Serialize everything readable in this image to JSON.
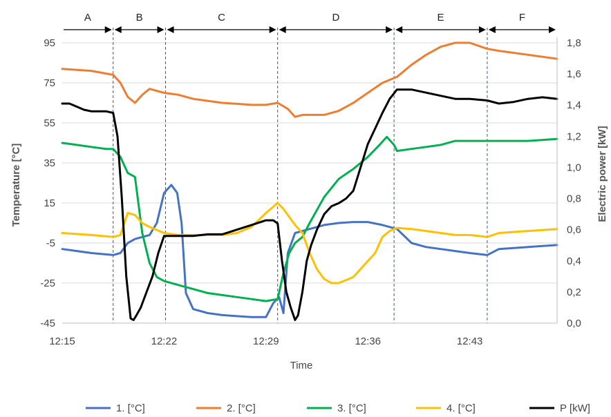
{
  "chart_data": {
    "type": "line",
    "xlabel": "Time",
    "ylabel": "Temperature [°C]",
    "y2label": "Electric power [kW]",
    "x_range_minutes": [
      0,
      34
    ],
    "ylim": [
      -45,
      95
    ],
    "y2lim": [
      0,
      1.8
    ],
    "x_ticks": [
      {
        "t": 0,
        "label": "12:15"
      },
      {
        "t": 7,
        "label": "12:22"
      },
      {
        "t": 14,
        "label": "12:29"
      },
      {
        "t": 21,
        "label": "12:36"
      },
      {
        "t": 28,
        "label": "12:43"
      }
    ],
    "y_ticks": [
      95,
      75,
      55,
      35,
      15,
      -5,
      -25,
      -45
    ],
    "y2_ticks": [
      "1,8",
      "1,6",
      "1,4",
      "1,2",
      "1,0",
      "0,8",
      "0,6",
      "0,4",
      "0,2",
      "0,0"
    ],
    "y2_tick_values": [
      1.8,
      1.6,
      1.4,
      1.2,
      1.0,
      0.8,
      0.6,
      0.4,
      0.2,
      0.0
    ],
    "grid": "horizontal",
    "legend_position": "bottom",
    "phase_boundaries": [
      3.5,
      7.1,
      14.8,
      22.8,
      29.2
    ],
    "phases": [
      {
        "label": "A",
        "start": 0,
        "end": 3.5
      },
      {
        "label": "B",
        "start": 3.5,
        "end": 7.1
      },
      {
        "label": "C",
        "start": 7.1,
        "end": 14.8
      },
      {
        "label": "D",
        "start": 14.8,
        "end": 22.8
      },
      {
        "label": "E",
        "start": 22.8,
        "end": 29.2
      },
      {
        "label": "F",
        "start": 29.2,
        "end": 34
      }
    ],
    "series": [
      {
        "name": "1. [°C]",
        "axis": "left",
        "color": "#4472C4",
        "x": [
          0,
          2,
          3.5,
          4.0,
          4.5,
          5.0,
          5.5,
          6.0,
          6.5,
          7.0,
          7.5,
          7.9,
          8.2,
          8.5,
          9.0,
          10,
          11,
          12,
          13,
          14,
          14.5,
          14.9,
          15.2,
          15.5,
          16,
          17,
          18,
          19,
          20,
          21,
          22,
          23,
          24,
          25,
          26,
          27,
          28,
          29.2,
          30,
          32,
          34
        ],
        "values": [
          -8,
          -10,
          -11,
          -10,
          -5,
          -3,
          -2,
          -1,
          5,
          20,
          24,
          20,
          5,
          -30,
          -38,
          -40,
          -41,
          -41.5,
          -42,
          -42,
          -35,
          -32,
          -40,
          -10,
          0,
          2,
          4,
          5,
          5.5,
          5.5,
          4,
          2,
          -5,
          -7,
          -8,
          -9,
          -10,
          -11,
          -8,
          -7,
          -6
        ]
      },
      {
        "name": "2. [°C]",
        "axis": "left",
        "color": "#ED7D31",
        "x": [
          0,
          2,
          3.5,
          4.0,
          4.5,
          5.0,
          5.5,
          6.0,
          7.0,
          8.0,
          9.0,
          10,
          11,
          12,
          13,
          14,
          14.8,
          15.5,
          16.0,
          16.5,
          17,
          18,
          19,
          20,
          21,
          22,
          23,
          24,
          25,
          26,
          27,
          28,
          29.2,
          30,
          32,
          34
        ],
        "values": [
          82,
          81,
          79,
          75,
          68,
          65,
          69,
          72,
          70,
          69,
          67,
          66,
          65,
          64.5,
          64,
          64,
          65,
          62,
          58,
          59,
          59,
          59,
          61,
          65,
          70,
          75,
          78,
          84,
          89,
          93,
          95,
          95,
          92,
          91,
          89,
          87
        ]
      },
      {
        "name": "3. [°C]",
        "axis": "left",
        "color": "#00B050",
        "x": [
          0,
          1,
          2,
          3,
          3.5,
          4.0,
          4.5,
          5.0,
          5.5,
          6.0,
          6.5,
          7.0,
          8.0,
          9.0,
          10,
          11,
          12,
          13,
          14,
          14.8,
          15.2,
          15.6,
          16.0,
          16.5,
          17,
          18,
          19,
          20,
          21,
          21.8,
          22.3,
          22.8,
          23,
          24,
          25,
          26,
          27,
          28,
          29.2,
          30,
          32,
          34
        ],
        "values": [
          45,
          44,
          43,
          42,
          42,
          38,
          30,
          28,
          0,
          -15,
          -22,
          -24,
          -26,
          -28,
          -30,
          -31,
          -32,
          -33,
          -34,
          -33,
          -20,
          -10,
          -5,
          -2,
          5,
          18,
          27,
          32,
          38,
          44,
          48,
          44,
          41,
          42,
          43,
          44,
          46,
          46,
          46,
          46,
          46,
          47
        ]
      },
      {
        "name": "4. [°C]",
        "axis": "left",
        "color": "#FFC000",
        "x": [
          0,
          2,
          3.5,
          4.0,
          4.5,
          5.0,
          5.5,
          6.0,
          7.0,
          8.0,
          9.0,
          10,
          11,
          12,
          13,
          14,
          14.8,
          15.2,
          15.6,
          16.0,
          16.5,
          17,
          17.5,
          18,
          18.5,
          19,
          20,
          21,
          21.5,
          22,
          22.5,
          22.8,
          23,
          24,
          25,
          26,
          27,
          28,
          29.2,
          30,
          32,
          34
        ],
        "values": [
          0,
          -1,
          -2,
          -1,
          10,
          9,
          5,
          3,
          0,
          -1,
          -1,
          -1,
          -1,
          0,
          3,
          10,
          15,
          12,
          8,
          4,
          0,
          -10,
          -18,
          -23,
          -25,
          -25,
          -22,
          -14,
          -10,
          -2,
          1,
          2,
          2.5,
          2,
          1,
          0,
          -1,
          -1,
          -2,
          0,
          1,
          2
        ]
      },
      {
        "name": "P    [kW]",
        "axis": "right",
        "color": "#000000",
        "x": [
          0,
          0.5,
          1,
          1.5,
          2,
          2.5,
          3,
          3.5,
          3.8,
          4.1,
          4.4,
          4.7,
          4.9,
          5.1,
          5.4,
          5.8,
          6.2,
          6.6,
          7.0,
          7.5,
          8,
          8.5,
          9,
          10,
          11,
          12,
          13,
          14,
          14.5,
          14.8,
          15.1,
          15.4,
          15.7,
          16.0,
          16.2,
          16.5,
          16.8,
          17.1,
          17.5,
          18,
          18.5,
          19,
          19.5,
          20,
          20.5,
          21,
          21.5,
          22,
          22.5,
          23,
          24,
          25,
          26,
          27,
          28,
          29.2,
          30,
          31,
          32,
          33,
          34
        ],
        "values": [
          1.41,
          1.41,
          1.39,
          1.37,
          1.36,
          1.36,
          1.36,
          1.35,
          1.2,
          0.8,
          0.3,
          0.03,
          0.02,
          0.05,
          0.1,
          0.2,
          0.3,
          0.45,
          0.56,
          0.56,
          0.56,
          0.56,
          0.56,
          0.57,
          0.57,
          0.6,
          0.63,
          0.66,
          0.66,
          0.64,
          0.4,
          0.2,
          0.1,
          0.02,
          0.05,
          0.2,
          0.4,
          0.5,
          0.6,
          0.7,
          0.75,
          0.77,
          0.8,
          0.85,
          1.0,
          1.15,
          1.25,
          1.35,
          1.44,
          1.5,
          1.5,
          1.48,
          1.46,
          1.44,
          1.44,
          1.43,
          1.41,
          1.42,
          1.44,
          1.45,
          1.44
        ]
      }
    ]
  }
}
